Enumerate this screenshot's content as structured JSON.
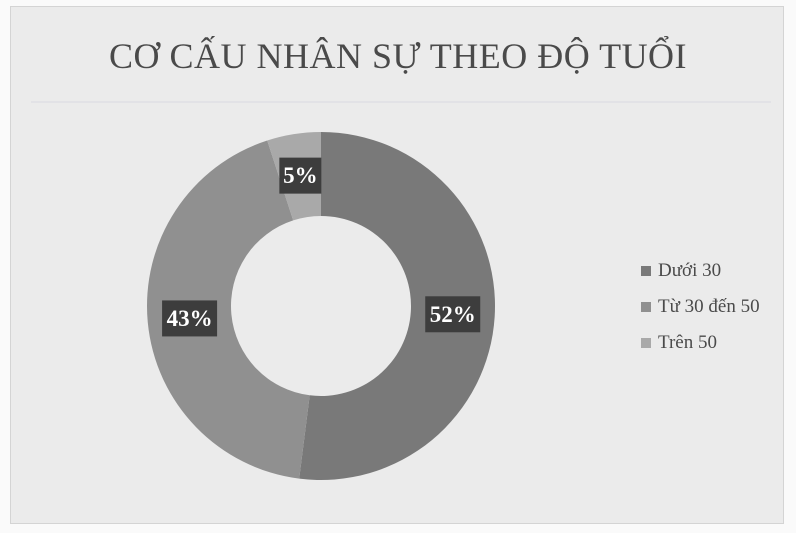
{
  "chart_data": {
    "type": "pie",
    "variant": "donut",
    "title": "CƠ CẤU NHÂN SỰ THEO ĐỘ TUỔI",
    "categories": [
      "Dưới 30",
      "Từ 30 đến 50",
      "Trên 50"
    ],
    "values": [
      52,
      43,
      5
    ],
    "data_labels": [
      "52%",
      "43%",
      "5%"
    ],
    "colors": [
      "#797979",
      "#909090",
      "#a9a9a9"
    ],
    "legend_position": "right",
    "grid": false
  }
}
